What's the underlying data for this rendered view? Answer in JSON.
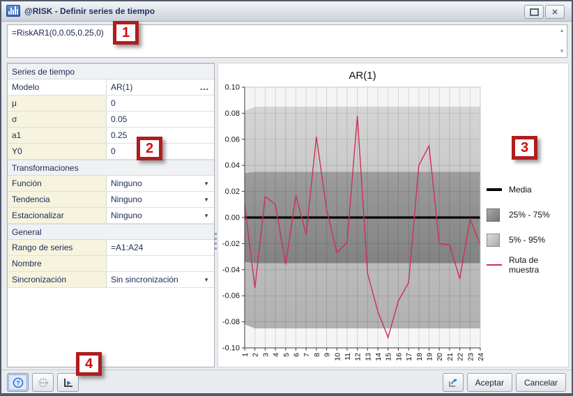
{
  "window": {
    "title": "@RISK - Definir series de tiempo"
  },
  "titlebar": {
    "close_glyph": "✕"
  },
  "formula_bar": {
    "formula": "=RiskAR1(0,0.05,0.25,0)"
  },
  "properties": {
    "rows": [
      {
        "type": "section",
        "label": "Series de tiempo"
      },
      {
        "type": "ellipsis",
        "label": "Modelo",
        "value": "AR(1)",
        "button": "...",
        "white_label": true
      },
      {
        "type": "input",
        "label": "μ",
        "value": "0"
      },
      {
        "type": "input",
        "label": "σ",
        "value": "0.05"
      },
      {
        "type": "input",
        "label": "a1",
        "value": "0.25"
      },
      {
        "type": "input",
        "label": "Y0",
        "value": "0"
      },
      {
        "type": "section",
        "label": "Transformaciones"
      },
      {
        "type": "dropdown",
        "label": "Función",
        "value": "Ninguno"
      },
      {
        "type": "dropdown",
        "label": "Tendencia",
        "value": "Ninguno"
      },
      {
        "type": "dropdown",
        "label": "Estacionalizar",
        "value": "Ninguno"
      },
      {
        "type": "section",
        "label": "General"
      },
      {
        "type": "input",
        "label": "Rango de series",
        "value": "=A1:A24"
      },
      {
        "type": "input",
        "label": "Nombre",
        "value": ""
      },
      {
        "type": "dropdown",
        "label": "Sincronización",
        "value": "Sin sincronización"
      }
    ]
  },
  "chart_data": {
    "type": "line",
    "title": "AR(1)",
    "x": [
      1,
      2,
      3,
      4,
      5,
      6,
      7,
      8,
      9,
      10,
      11,
      12,
      13,
      14,
      15,
      16,
      17,
      18,
      19,
      20,
      21,
      22,
      23,
      24
    ],
    "ylim": [
      -0.1,
      0.1
    ],
    "yticks": {
      "values": [
        0.1,
        0.08,
        0.06,
        0.04,
        0.02,
        0.0,
        -0.02,
        -0.04,
        -0.06,
        -0.08,
        -0.1
      ],
      "labels": [
        "0.10",
        "0.08",
        "0.06",
        "0.04",
        "0.02",
        "0.00",
        "-0.02",
        "-0.04",
        "-0.06",
        "-0.08",
        "-0.10"
      ]
    },
    "grid": true,
    "legend_position": "right",
    "series": [
      {
        "name": "Media",
        "color": "#000000",
        "width": 3.2,
        "values": [
          0,
          0,
          0,
          0,
          0,
          0,
          0,
          0,
          0,
          0,
          0,
          0,
          0,
          0,
          0,
          0,
          0,
          0,
          0,
          0,
          0,
          0,
          0,
          0
        ]
      },
      {
        "name": "Ruta de muestra",
        "color": "#d02e55",
        "width": 1.4,
        "values": [
          0.01,
          -0.054,
          0.016,
          0.01,
          -0.036,
          0.017,
          -0.013,
          0.062,
          0.006,
          -0.027,
          -0.019,
          0.078,
          -0.043,
          -0.072,
          -0.092,
          -0.064,
          -0.05,
          0.04,
          0.055,
          -0.02,
          -0.021,
          -0.047,
          -0.001,
          -0.021
        ]
      }
    ],
    "bands": [
      {
        "name": "5% - 95%",
        "high": 0.085,
        "low": -0.085,
        "high_t1": 0.082,
        "low_t1": -0.082,
        "color_top": "#d5d5d5",
        "color_bottom": "#b1b1b1"
      },
      {
        "name": "25% - 75%",
        "high": 0.035,
        "low": -0.035,
        "high_t1": 0.034,
        "low_t1": -0.034,
        "color_top": "#9d9d9d",
        "color_bottom": "#828282"
      }
    ],
    "plot_bg": "#f5f5f5"
  },
  "legend": {
    "items": [
      {
        "label": "Media",
        "swatch": "line-black"
      },
      {
        "label": "25% - 75%",
        "swatch": "box-dark"
      },
      {
        "label": "5% - 95%",
        "swatch": "box-light"
      },
      {
        "label": "Ruta de muestra",
        "swatch": "line-red"
      }
    ]
  },
  "badges": [
    {
      "label": "1"
    },
    {
      "label": "2"
    },
    {
      "label": "3"
    },
    {
      "label": "4"
    }
  ],
  "footer": {
    "accept_label": "Aceptar",
    "cancel_label": "Cancelar"
  }
}
